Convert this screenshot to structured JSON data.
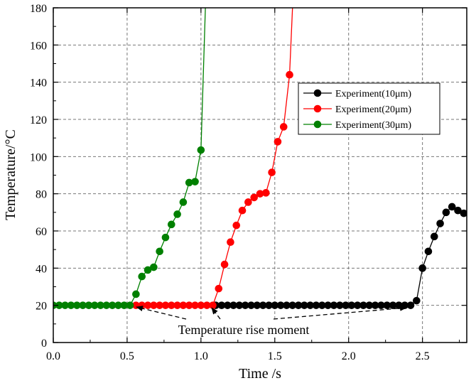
{
  "chart_data": {
    "type": "line",
    "xlabel": "Time /s",
    "ylabel": "Temperature/°C",
    "xlim": [
      0,
      2.8
    ],
    "ylim": [
      0,
      180
    ],
    "x_ticks": [
      "0.0",
      "0.5",
      "1.0",
      "1.5",
      "2.0",
      "2.5"
    ],
    "x_tick_values": [
      0,
      0.5,
      1.0,
      1.5,
      2.0,
      2.5
    ],
    "y_ticks": [
      "0",
      "20",
      "40",
      "60",
      "80",
      "100",
      "120",
      "140",
      "160",
      "180"
    ],
    "y_tick_values": [
      0,
      20,
      40,
      60,
      80,
      100,
      120,
      140,
      160,
      180
    ],
    "grid": true,
    "legend_position": "right-middle",
    "annotation": "Temperature rise moment",
    "series": [
      {
        "name": "Experiment(10μm)",
        "color": "#000000",
        "x": [
          1.1,
          1.14,
          1.18,
          1.22,
          1.26,
          1.3,
          1.34,
          1.38,
          1.42,
          1.46,
          1.5,
          1.54,
          1.58,
          1.62,
          1.66,
          1.7,
          1.74,
          1.78,
          1.82,
          1.86,
          1.9,
          1.94,
          1.98,
          2.02,
          2.06,
          2.1,
          2.14,
          2.18,
          2.22,
          2.26,
          2.3,
          2.34,
          2.38,
          2.42,
          2.46,
          2.5,
          2.54,
          2.58,
          2.62,
          2.66,
          2.7,
          2.74,
          2.78
        ],
        "y": [
          20,
          20,
          20,
          20,
          20,
          20,
          20,
          20,
          20,
          20,
          20,
          20,
          20,
          20,
          20,
          20,
          20,
          20,
          20,
          20,
          20,
          20,
          20,
          20,
          20,
          20,
          20,
          20,
          20,
          20,
          20,
          20,
          20,
          20,
          22.5,
          40,
          49,
          57,
          64,
          70,
          73,
          71,
          69.5
        ],
        "line_tail": [
          [
            2.78,
            69.5
          ],
          [
            2.8,
            70
          ]
        ]
      },
      {
        "name": "Experiment(20μm)",
        "color": "#ff0000",
        "x": [
          0.56,
          0.6,
          0.64,
          0.68,
          0.72,
          0.76,
          0.8,
          0.84,
          0.88,
          0.92,
          0.96,
          1.0,
          1.04,
          1.08,
          1.12,
          1.16,
          1.2,
          1.24,
          1.28,
          1.32,
          1.36,
          1.4,
          1.44,
          1.48,
          1.52,
          1.56,
          1.6
        ],
        "y": [
          20,
          20,
          20,
          20,
          20,
          20,
          20,
          20,
          20,
          20,
          20,
          20,
          20,
          20,
          29,
          42,
          54,
          63,
          71,
          75.5,
          78,
          80,
          80.5,
          91.5,
          108,
          116,
          144
        ],
        "line_tail": [
          [
            1.6,
            144
          ],
          [
            1.62,
            180
          ]
        ]
      },
      {
        "name": "Experiment(30μm)",
        "color": "#008000",
        "x": [
          0.0,
          0.04,
          0.08,
          0.12,
          0.16,
          0.2,
          0.24,
          0.28,
          0.32,
          0.36,
          0.4,
          0.44,
          0.48,
          0.52,
          0.56,
          0.6,
          0.64,
          0.68,
          0.72,
          0.76,
          0.8,
          0.84,
          0.88,
          0.92,
          0.96,
          1.0
        ],
        "y": [
          20,
          20,
          20,
          20,
          20,
          20,
          20,
          20,
          20,
          20,
          20,
          20,
          20,
          20,
          26,
          35.5,
          39,
          40.5,
          49,
          56.5,
          63.5,
          69,
          75.5,
          86,
          86.5,
          103.5
        ],
        "line_tail": [
          [
            1.0,
            103.5
          ],
          [
            1.03,
            180
          ]
        ]
      }
    ]
  }
}
